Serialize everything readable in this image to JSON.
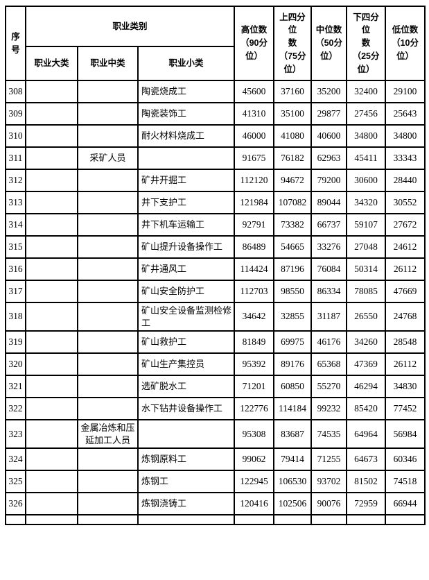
{
  "table": {
    "header": {
      "seq": "序\n号",
      "category_group": "职业类别",
      "sub_major": "职业大类",
      "sub_middle": "职业中类",
      "sub_minor": "职业小类",
      "p90": "高位数\n（90分\n位）",
      "p75": "上四分位\n数\n（75分\n位）",
      "p50": "中位数\n（50分\n位）",
      "p25": "下四分位\n数\n（25分\n位）",
      "p10": "低位数\n（10分\n位）"
    },
    "rows": [
      {
        "no": "308",
        "major": "",
        "middle": "",
        "minor": "陶瓷烧成工",
        "values": [
          "45600",
          "37160",
          "35200",
          "32400",
          "29100"
        ]
      },
      {
        "no": "309",
        "major": "",
        "middle": "",
        "minor": "陶瓷装饰工",
        "values": [
          "41310",
          "35100",
          "29877",
          "27456",
          "25643"
        ]
      },
      {
        "no": "310",
        "major": "",
        "middle": "",
        "minor": "耐火材料烧成工",
        "values": [
          "46000",
          "41080",
          "40600",
          "34800",
          "34800"
        ]
      },
      {
        "no": "311",
        "major": "",
        "middle": "采矿人员",
        "minor": "",
        "values": [
          "91675",
          "76182",
          "62963",
          "45411",
          "33343"
        ]
      },
      {
        "no": "312",
        "major": "",
        "middle": "",
        "minor": "矿井开掘工",
        "values": [
          "112120",
          "94672",
          "79200",
          "30600",
          "28440"
        ]
      },
      {
        "no": "313",
        "major": "",
        "middle": "",
        "minor": "井下支护工",
        "values": [
          "121984",
          "107082",
          "89044",
          "34320",
          "30552"
        ]
      },
      {
        "no": "314",
        "major": "",
        "middle": "",
        "minor": "井下机车运输工",
        "values": [
          "92791",
          "73382",
          "66737",
          "59107",
          "27672"
        ]
      },
      {
        "no": "315",
        "major": "",
        "middle": "",
        "minor": "矿山提升设备操作工",
        "values": [
          "86489",
          "54665",
          "33276",
          "27048",
          "24612"
        ]
      },
      {
        "no": "316",
        "major": "",
        "middle": "",
        "minor": "矿井通风工",
        "values": [
          "114424",
          "87196",
          "76084",
          "50314",
          "26112"
        ]
      },
      {
        "no": "317",
        "major": "",
        "middle": "",
        "minor": "矿山安全防护工",
        "values": [
          "112703",
          "98550",
          "86334",
          "78085",
          "47669"
        ]
      },
      {
        "no": "318",
        "major": "",
        "middle": "",
        "minor": "矿山安全设备监测检修工",
        "values": [
          "34642",
          "32855",
          "31187",
          "26550",
          "24768"
        ]
      },
      {
        "no": "319",
        "major": "",
        "middle": "",
        "minor": "矿山救护工",
        "values": [
          "81849",
          "69975",
          "46176",
          "34260",
          "28548"
        ]
      },
      {
        "no": "320",
        "major": "",
        "middle": "",
        "minor": "矿山生产集控员",
        "values": [
          "95392",
          "89176",
          "65368",
          "47369",
          "26112"
        ]
      },
      {
        "no": "321",
        "major": "",
        "middle": "",
        "minor": "选矿脱水工",
        "values": [
          "71201",
          "60850",
          "55270",
          "46294",
          "34830"
        ]
      },
      {
        "no": "322",
        "major": "",
        "middle": "",
        "minor": "水下钻井设备操作工",
        "values": [
          "122776",
          "114184",
          "99232",
          "85420",
          "77452"
        ]
      },
      {
        "no": "323",
        "major": "",
        "middle": "金属冶炼和压延加工人员",
        "minor": "",
        "values": [
          "95308",
          "83687",
          "74535",
          "64964",
          "56984"
        ]
      },
      {
        "no": "324",
        "major": "",
        "middle": "",
        "minor": "炼钢原料工",
        "values": [
          "99062",
          "79414",
          "71255",
          "64673",
          "60346"
        ]
      },
      {
        "no": "325",
        "major": "",
        "middle": "",
        "minor": "炼钢工",
        "values": [
          "122945",
          "106530",
          "93702",
          "81502",
          "74518"
        ]
      },
      {
        "no": "326",
        "major": "",
        "middle": "",
        "minor": "炼钢浇铸工",
        "values": [
          "120416",
          "102506",
          "90076",
          "72959",
          "66944"
        ]
      }
    ]
  },
  "colors": {
    "grid": "#000000",
    "paper": "#ffffff",
    "text": "#000000"
  }
}
